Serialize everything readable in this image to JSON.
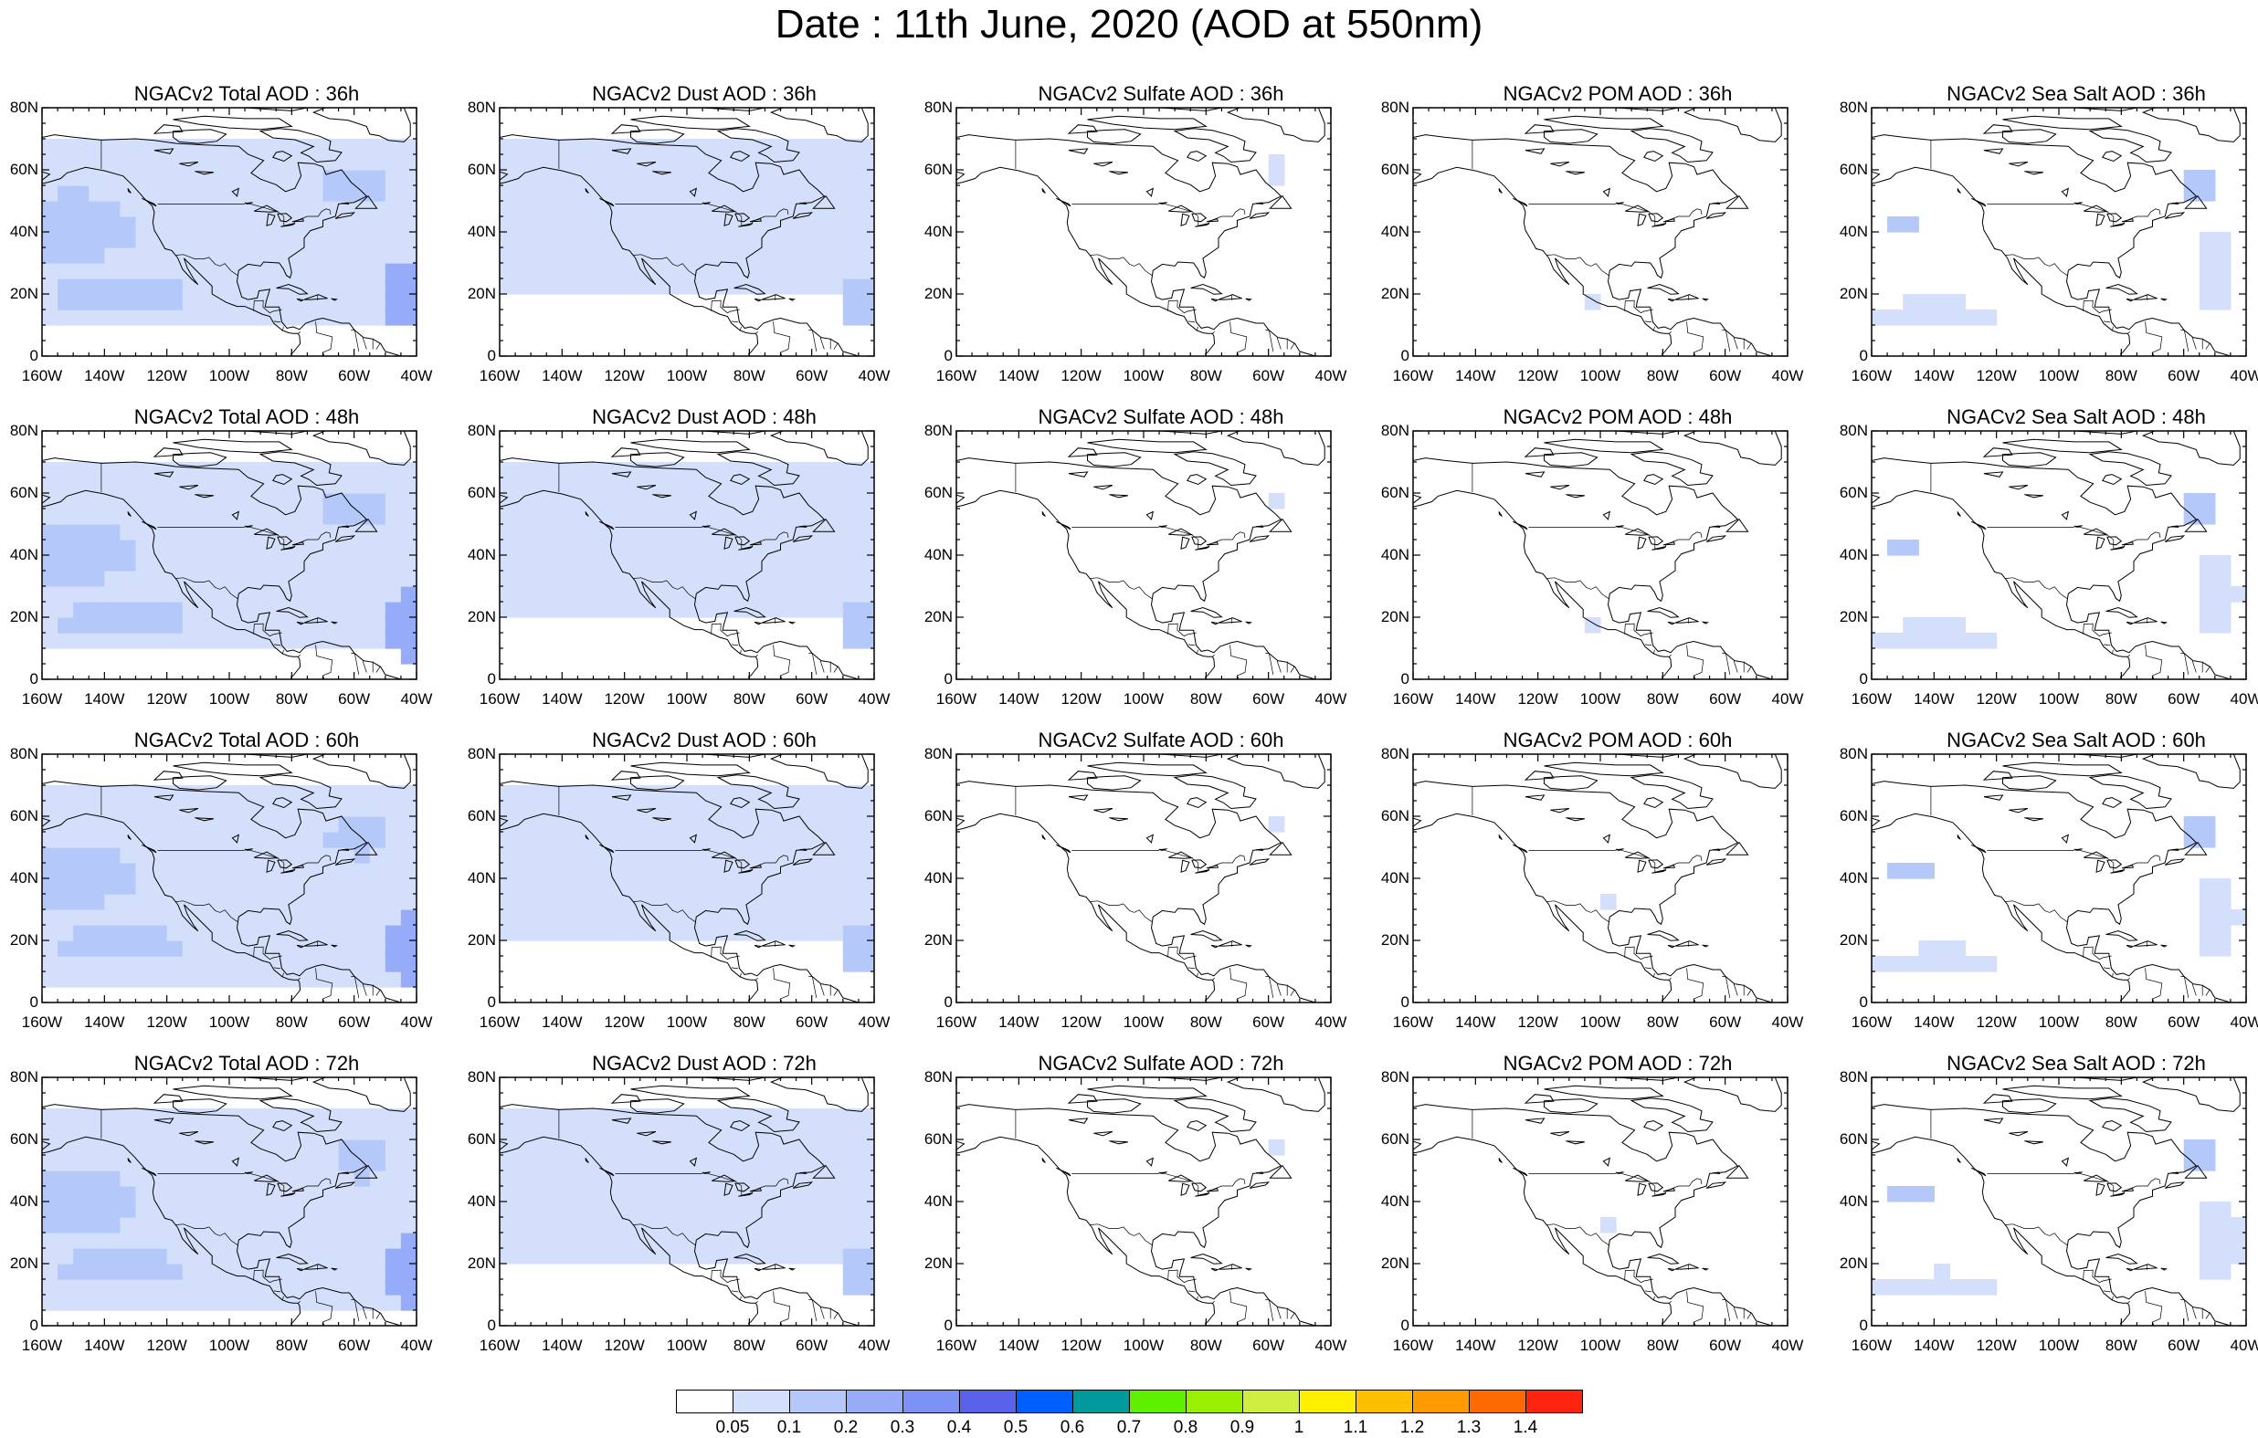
{
  "title": "Date : 11th June, 2020 (AOD at 550nm)",
  "x_tick_labels": [
    "160W",
    "140W",
    "120W",
    "100W",
    "80W",
    "60W",
    "40W"
  ],
  "y_tick_labels": [
    "0",
    "20N",
    "40N",
    "60N",
    "80N"
  ],
  "columns": [
    {
      "id": "total",
      "name": "NGACv2 Total AOD",
      "intensity": 1.0
    },
    {
      "id": "dust",
      "name": "NGACv2 Dust AOD",
      "intensity": 0.8
    },
    {
      "id": "sulfate",
      "name": "NGACv2 Sulfate AOD",
      "intensity": 0.0
    },
    {
      "id": "pom",
      "name": "NGACv2 POM AOD",
      "intensity": 0.05
    },
    {
      "id": "seasalt",
      "name": "NGACv2 Sea Salt AOD",
      "intensity": 0.3
    }
  ],
  "panel_titles": [
    [
      "NGACv2 Total AOD : 36h",
      "NGACv2 Dust AOD : 36h",
      "NGACv2 Sulfate AOD : 36h",
      "NGACv2 POM AOD : 36h",
      "NGACv2 Sea Salt AOD : 36h"
    ],
    [
      "NGACv2 Total AOD : 48h",
      "NGACv2 Dust AOD : 48h",
      "NGACv2 Sulfate AOD : 48h",
      "NGACv2 POM AOD : 48h",
      "NGACv2 Sea Salt AOD : 48h"
    ],
    [
      "NGACv2 Total AOD : 60h",
      "NGACv2 Dust AOD : 60h",
      "NGACv2 Sulfate AOD : 60h",
      "NGACv2 POM AOD : 60h",
      "NGACv2 Sea Salt AOD : 60h"
    ],
    [
      "NGACv2 Total AOD : 72h",
      "NGACv2 Dust AOD : 72h",
      "NGACv2 Sulfate AOD : 72h",
      "NGACv2 POM AOD : 72h",
      "NGACv2 Sea Salt  AOD : 72h"
    ]
  ],
  "forecast_hours": [
    "36h",
    "48h",
    "60h",
    "72h"
  ],
  "colorbar": {
    "labels": [
      "0.05",
      "0.1",
      "0.2",
      "0.3",
      "0.4",
      "0.5",
      "0.6",
      "0.7",
      "0.8",
      "0.9",
      "1",
      "1.1",
      "1.2",
      "1.3",
      "1.4"
    ],
    "colors": [
      "#ffffff",
      "#d4e0fb",
      "#b4c8fa",
      "#96acf8",
      "#7e92f5",
      "#5a62ec",
      "#0060ff",
      "#009a9a",
      "#5ff000",
      "#98f000",
      "#cfee40",
      "#fff000",
      "#ffc000",
      "#ff9a00",
      "#ff6a00",
      "#ff2410"
    ]
  },
  "colors": {
    "light_blue": "#d4e0fb",
    "mid_blue": "#b4c8fa",
    "deep_blue": "#96acf8",
    "coast": "#000000"
  }
}
